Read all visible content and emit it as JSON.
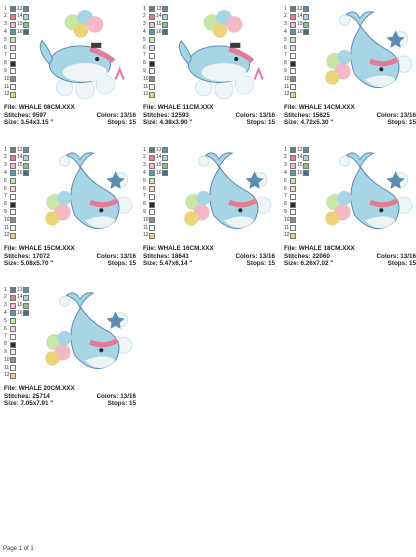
{
  "cards": [
    {
      "file": "File: WHALE 08CM.XXX",
      "stitches": "Stitches: 9597",
      "colors": "Colors: 13/16",
      "size": "Size: 3.54x3.15 \"",
      "stops": "Stops: 15"
    },
    {
      "file": "File: WHALE 11CM.XXX",
      "stitches": "Stitches: 12593",
      "colors": "Colors: 13/16",
      "size": "Size: 4.38x3.90 \"",
      "stops": "Stops: 15"
    },
    {
      "file": "File: WHALE 14CM.XXX",
      "stitches": "Stitches: 15625",
      "colors": "Colors: 13/16",
      "size": "Size: 4.72x5.30 \"",
      "stops": "Stops: 15"
    },
    {
      "file": "File: WHALE 15CM.XXX",
      "stitches": "Stitches: 17072",
      "colors": "Colors: 13/16",
      "size": "Size: 5.08x5.70 \"",
      "stops": "Stops: 15"
    },
    {
      "file": "File: WHALE 16CM.XXX",
      "stitches": "Stitches: 18641",
      "colors": "Colors: 13/16",
      "size": "Size: 5.47x6.14 \"",
      "stops": "Stops: 15"
    },
    {
      "file": "File: WHALE 18CM.XXX",
      "stitches": "Stitches: 22060",
      "colors": "Colors: 13/16",
      "size": "Size: 6.26x7.02 \"",
      "stops": "Stops: 15"
    },
    {
      "file": "File: WHALE 20CM.XXX",
      "stitches": "Stitches: 25714",
      "colors": "Colors: 13/16",
      "size": "Size: 7.05x7.91 \"",
      "stops": "Stops: 15"
    }
  ],
  "swatches": [
    {
      "number": "1",
      "color": "#5d7f96"
    },
    {
      "number": "2",
      "color": "#e27b93"
    },
    {
      "number": "3",
      "color": "#f3b9c6"
    },
    {
      "number": "4",
      "color": "#4e9fb0"
    },
    {
      "number": "5",
      "color": "#c8e6a8"
    },
    {
      "number": "6",
      "color": "#f6d0d8"
    },
    {
      "number": "7",
      "color": "#ffffff"
    },
    {
      "number": "8",
      "color": "#2a2a2a"
    },
    {
      "number": "9",
      "color": "#f4f4f4"
    },
    {
      "number": "10",
      "color": "#8c8c8c"
    },
    {
      "number": "11",
      "color": "#eef3f6"
    },
    {
      "number": "12",
      "color": "#ecd27a"
    },
    {
      "number": "13",
      "color": "#5b8db3"
    },
    {
      "number": "14",
      "color": "#a8d5e6"
    },
    {
      "number": "15",
      "color": "#8cc47a"
    },
    {
      "number": "16",
      "color": "#3c6f8f"
    }
  ],
  "footer": "Page 1 of 1"
}
